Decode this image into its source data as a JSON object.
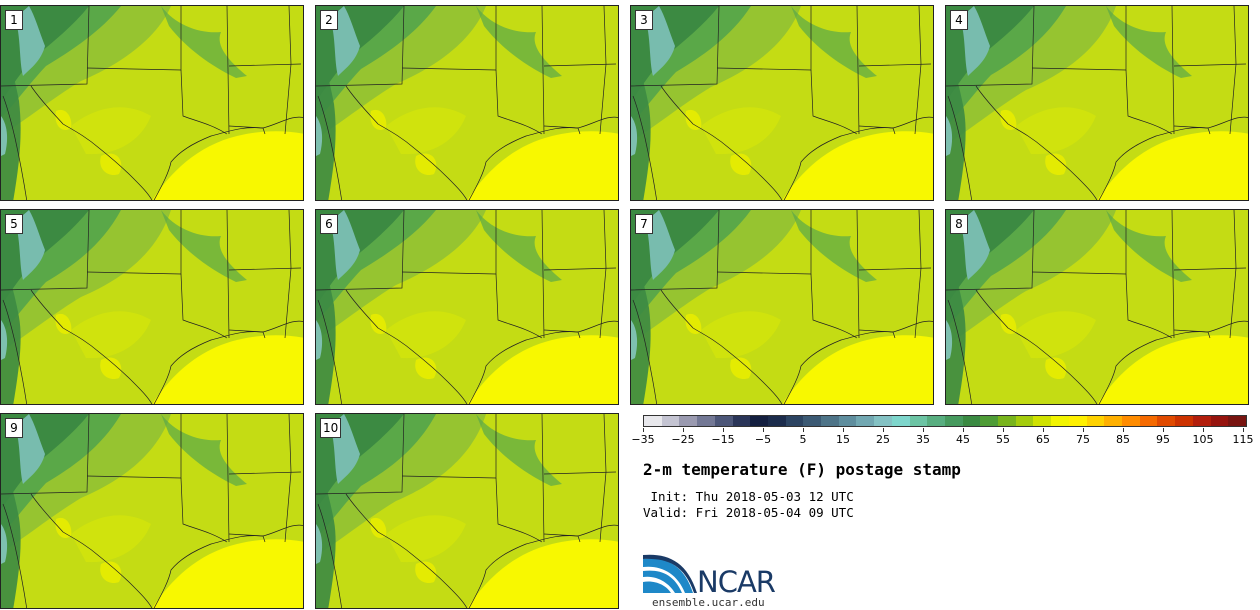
{
  "panels": [
    {
      "label": "1"
    },
    {
      "label": "2"
    },
    {
      "label": "3"
    },
    {
      "label": "4"
    },
    {
      "label": "5"
    },
    {
      "label": "6"
    },
    {
      "label": "7"
    },
    {
      "label": "8"
    },
    {
      "label": "9"
    },
    {
      "label": "10"
    }
  ],
  "colorbar": {
    "colors": [
      "#e8e8ec",
      "#c4c4d2",
      "#9a9ab0",
      "#737895",
      "#4c5678",
      "#2a3558",
      "#141f40",
      "#1c2c4c",
      "#2c4462",
      "#3c5a74",
      "#4e7488",
      "#5f8e9e",
      "#72a8b2",
      "#84c2c4",
      "#7ed6cc",
      "#6cc4a4",
      "#58ae80",
      "#469a5e",
      "#3a8a42",
      "#4e9c36",
      "#78b41c",
      "#a4cc0c",
      "#d0e200",
      "#f2f400",
      "#fff000",
      "#ffd200",
      "#ffb000",
      "#ff8c00",
      "#f56a00",
      "#e04a00",
      "#cc3200",
      "#b21e0c",
      "#96140e",
      "#781410"
    ],
    "tick_labels": [
      "−35",
      "−25",
      "−15",
      "−5",
      "5",
      "15",
      "25",
      "35",
      "45",
      "55",
      "65",
      "75",
      "85",
      "95",
      "105",
      "115"
    ],
    "min": -35,
    "max": 115
  },
  "title": "2-m temperature (F) postage stamp",
  "init": " Init: Thu 2018-05-03 12 UTC",
  "valid": "Valid: Fri 2018-05-04 09 UTC",
  "logo": {
    "name": "NCAR",
    "url": "ensemble.ucar.edu"
  }
}
